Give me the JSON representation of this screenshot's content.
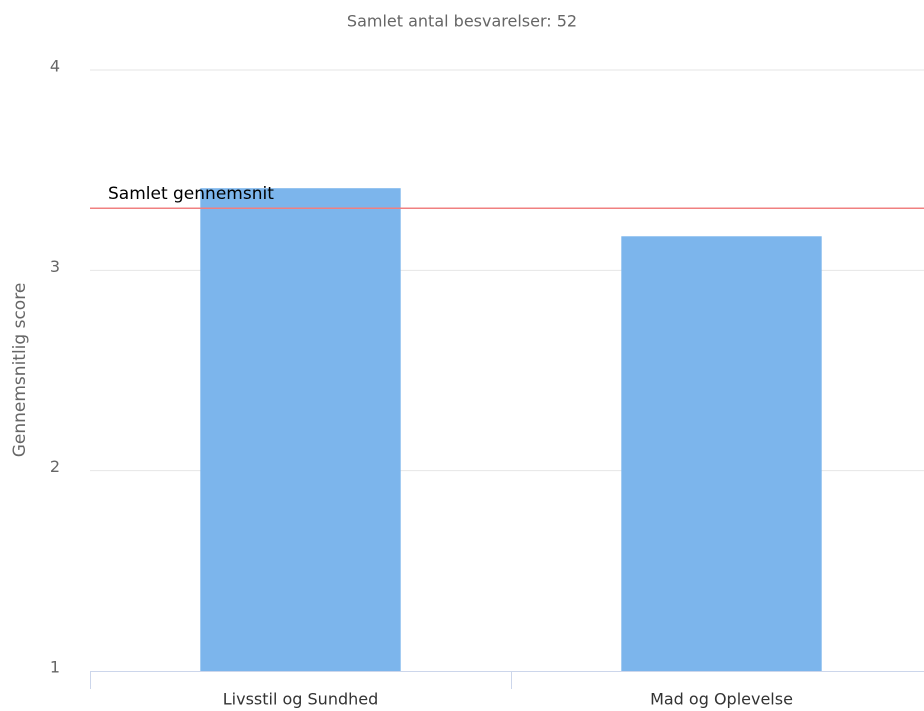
{
  "chart_data": {
    "type": "bar",
    "title": "Samlet antal besvarelser: 52",
    "y_label": "Gennemsnitlig score",
    "categories": [
      "Livsstil og Sundhed",
      "Mad og Oplevelse"
    ],
    "values": [
      3.41,
      3.17
    ],
    "color": "#7cb5ec",
    "ylim": [
      1,
      4
    ],
    "yticks": [
      1,
      2,
      3,
      4
    ],
    "grid": true,
    "reference_line": {
      "label": "Samlet gennemsnit",
      "value": 3.31,
      "color": "#f08080"
    }
  }
}
